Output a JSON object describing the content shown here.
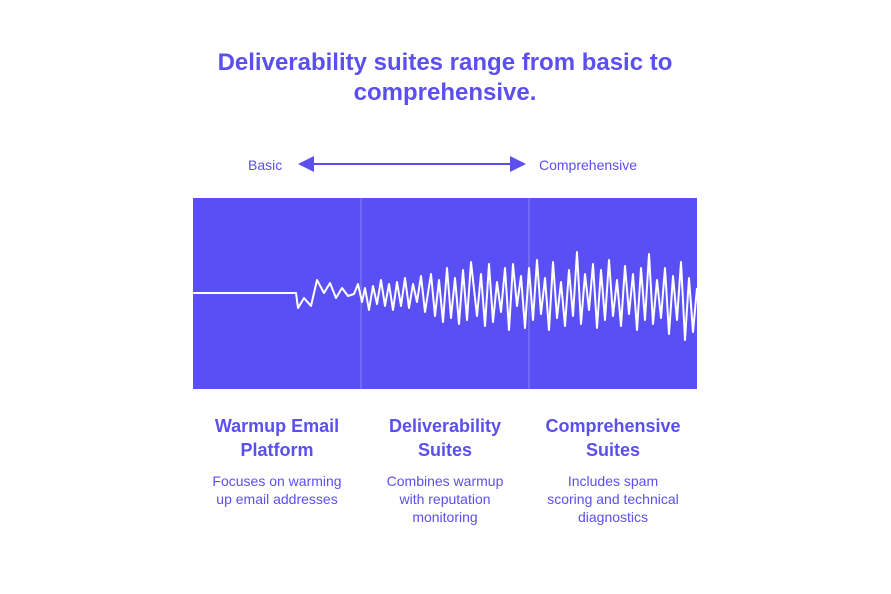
{
  "header": {
    "title": "Deliverability suites range from basic to comprehensive."
  },
  "scale": {
    "start": "Basic",
    "end": "Comprehensive"
  },
  "columns": [
    {
      "title": "Warmup Email Platform",
      "description": "Focuses on warming up email addresses"
    },
    {
      "title": "Deliverability Suites",
      "description": "Combines warmup with reputation monitoring"
    },
    {
      "title": "Comprehensive Suites",
      "description": "Includes spam scoring and technical diagnostics"
    }
  ]
}
